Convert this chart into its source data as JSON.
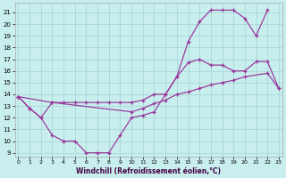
{
  "xlabel": "Windchill (Refroidissement éolien,°C)",
  "bg_color": "#c8eeee",
  "grid_color": "#a8d8d8",
  "line_color": "#993399",
  "xlim": [
    -0.3,
    23.3
  ],
  "ylim": [
    8.7,
    21.8
  ],
  "yticks": [
    9,
    10,
    11,
    12,
    13,
    14,
    15,
    16,
    17,
    18,
    19,
    20,
    21
  ],
  "xticks": [
    0,
    1,
    2,
    3,
    4,
    5,
    6,
    7,
    8,
    9,
    10,
    11,
    12,
    13,
    14,
    15,
    16,
    17,
    18,
    19,
    20,
    21,
    22,
    23
  ],
  "curve_upper_x": [
    0,
    1,
    2,
    3,
    4,
    5,
    6,
    7,
    8,
    9,
    10,
    11,
    12,
    13,
    14,
    15,
    16,
    17,
    18,
    19,
    20,
    21,
    22
  ],
  "curve_upper_y": [
    13.8,
    12.8,
    12.0,
    13.3,
    13.3,
    13.3,
    13.3,
    13.3,
    13.3,
    13.3,
    13.3,
    13.5,
    14.0,
    14.0,
    15.5,
    18.5,
    20.2,
    21.2,
    21.2,
    21.2,
    20.5,
    19.0,
    21.2
  ],
  "curve_lower_x": [
    0,
    1,
    2,
    3,
    4,
    5,
    6,
    7,
    8,
    9,
    10,
    11,
    12,
    13,
    14,
    15,
    16,
    17,
    18,
    19,
    20,
    21,
    22,
    23
  ],
  "curve_lower_y": [
    13.8,
    12.8,
    12.0,
    10.5,
    10.0,
    10.0,
    9.0,
    9.0,
    9.0,
    10.5,
    12.0,
    12.2,
    12.5,
    14.0,
    15.5,
    16.7,
    17.0,
    16.5,
    16.5,
    16.0,
    16.0,
    16.8,
    16.8,
    14.5
  ],
  "curve_mid_x": [
    0,
    3,
    10,
    11,
    12,
    13,
    14,
    15,
    16,
    17,
    18,
    19,
    20,
    22,
    23
  ],
  "curve_mid_y": [
    13.8,
    13.3,
    12.5,
    12.8,
    13.2,
    13.5,
    14.0,
    14.2,
    14.5,
    14.8,
    15.0,
    15.2,
    15.5,
    15.8,
    14.5
  ]
}
